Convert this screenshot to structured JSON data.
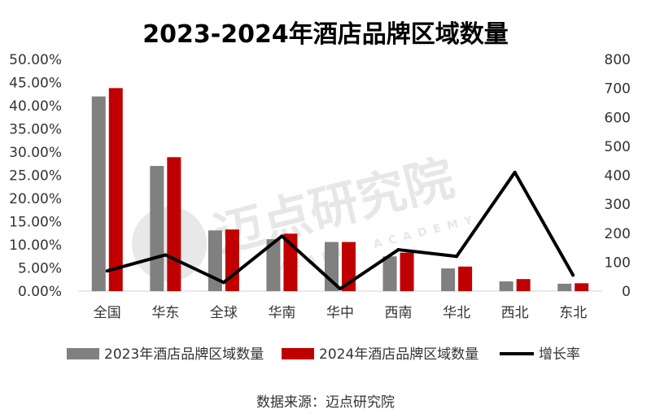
{
  "chart_data": {
    "type": "bar",
    "title": "2023-2024年酒店品牌区域数量",
    "categories": [
      "全国",
      "华东",
      "全球",
      "华南",
      "华中",
      "西南",
      "华北",
      "西北",
      "东北"
    ],
    "series": [
      {
        "name": "2023年酒店品牌区域数量",
        "kind": "bar",
        "axis": "left",
        "color": "#808080",
        "values": [
          0.42,
          0.27,
          0.131,
          0.112,
          0.106,
          0.075,
          0.049,
          0.021,
          0.016
        ]
      },
      {
        "name": "2024年酒店品牌区域数量",
        "kind": "bar",
        "axis": "left",
        "color": "#C00000",
        "values": [
          0.438,
          0.289,
          0.133,
          0.124,
          0.106,
          0.083,
          0.053,
          0.026,
          0.017
        ]
      },
      {
        "name": "增长率",
        "kind": "line",
        "axis": "right",
        "color": "#000000",
        "values": [
          70,
          125,
          30,
          190,
          8,
          143,
          120,
          410,
          55
        ]
      }
    ],
    "left_axis": {
      "min": 0,
      "max": 0.5,
      "step": 0.05,
      "ticks": [
        "0.00%",
        "5.00%",
        "10.00%",
        "15.00%",
        "20.00%",
        "25.00%",
        "30.00%",
        "35.00%",
        "40.00%",
        "45.00%",
        "50.00%"
      ]
    },
    "right_axis": {
      "min": 0,
      "max": 800,
      "step": 100,
      "ticks": [
        "0",
        "100",
        "200",
        "300",
        "400",
        "500",
        "600",
        "700",
        "800"
      ]
    },
    "grid": false,
    "legend_position": "bottom"
  },
  "source": "数据来源：迈点研究院",
  "watermark": {
    "cn": "迈点研究院",
    "en": "MEADIN ACADEMY"
  }
}
